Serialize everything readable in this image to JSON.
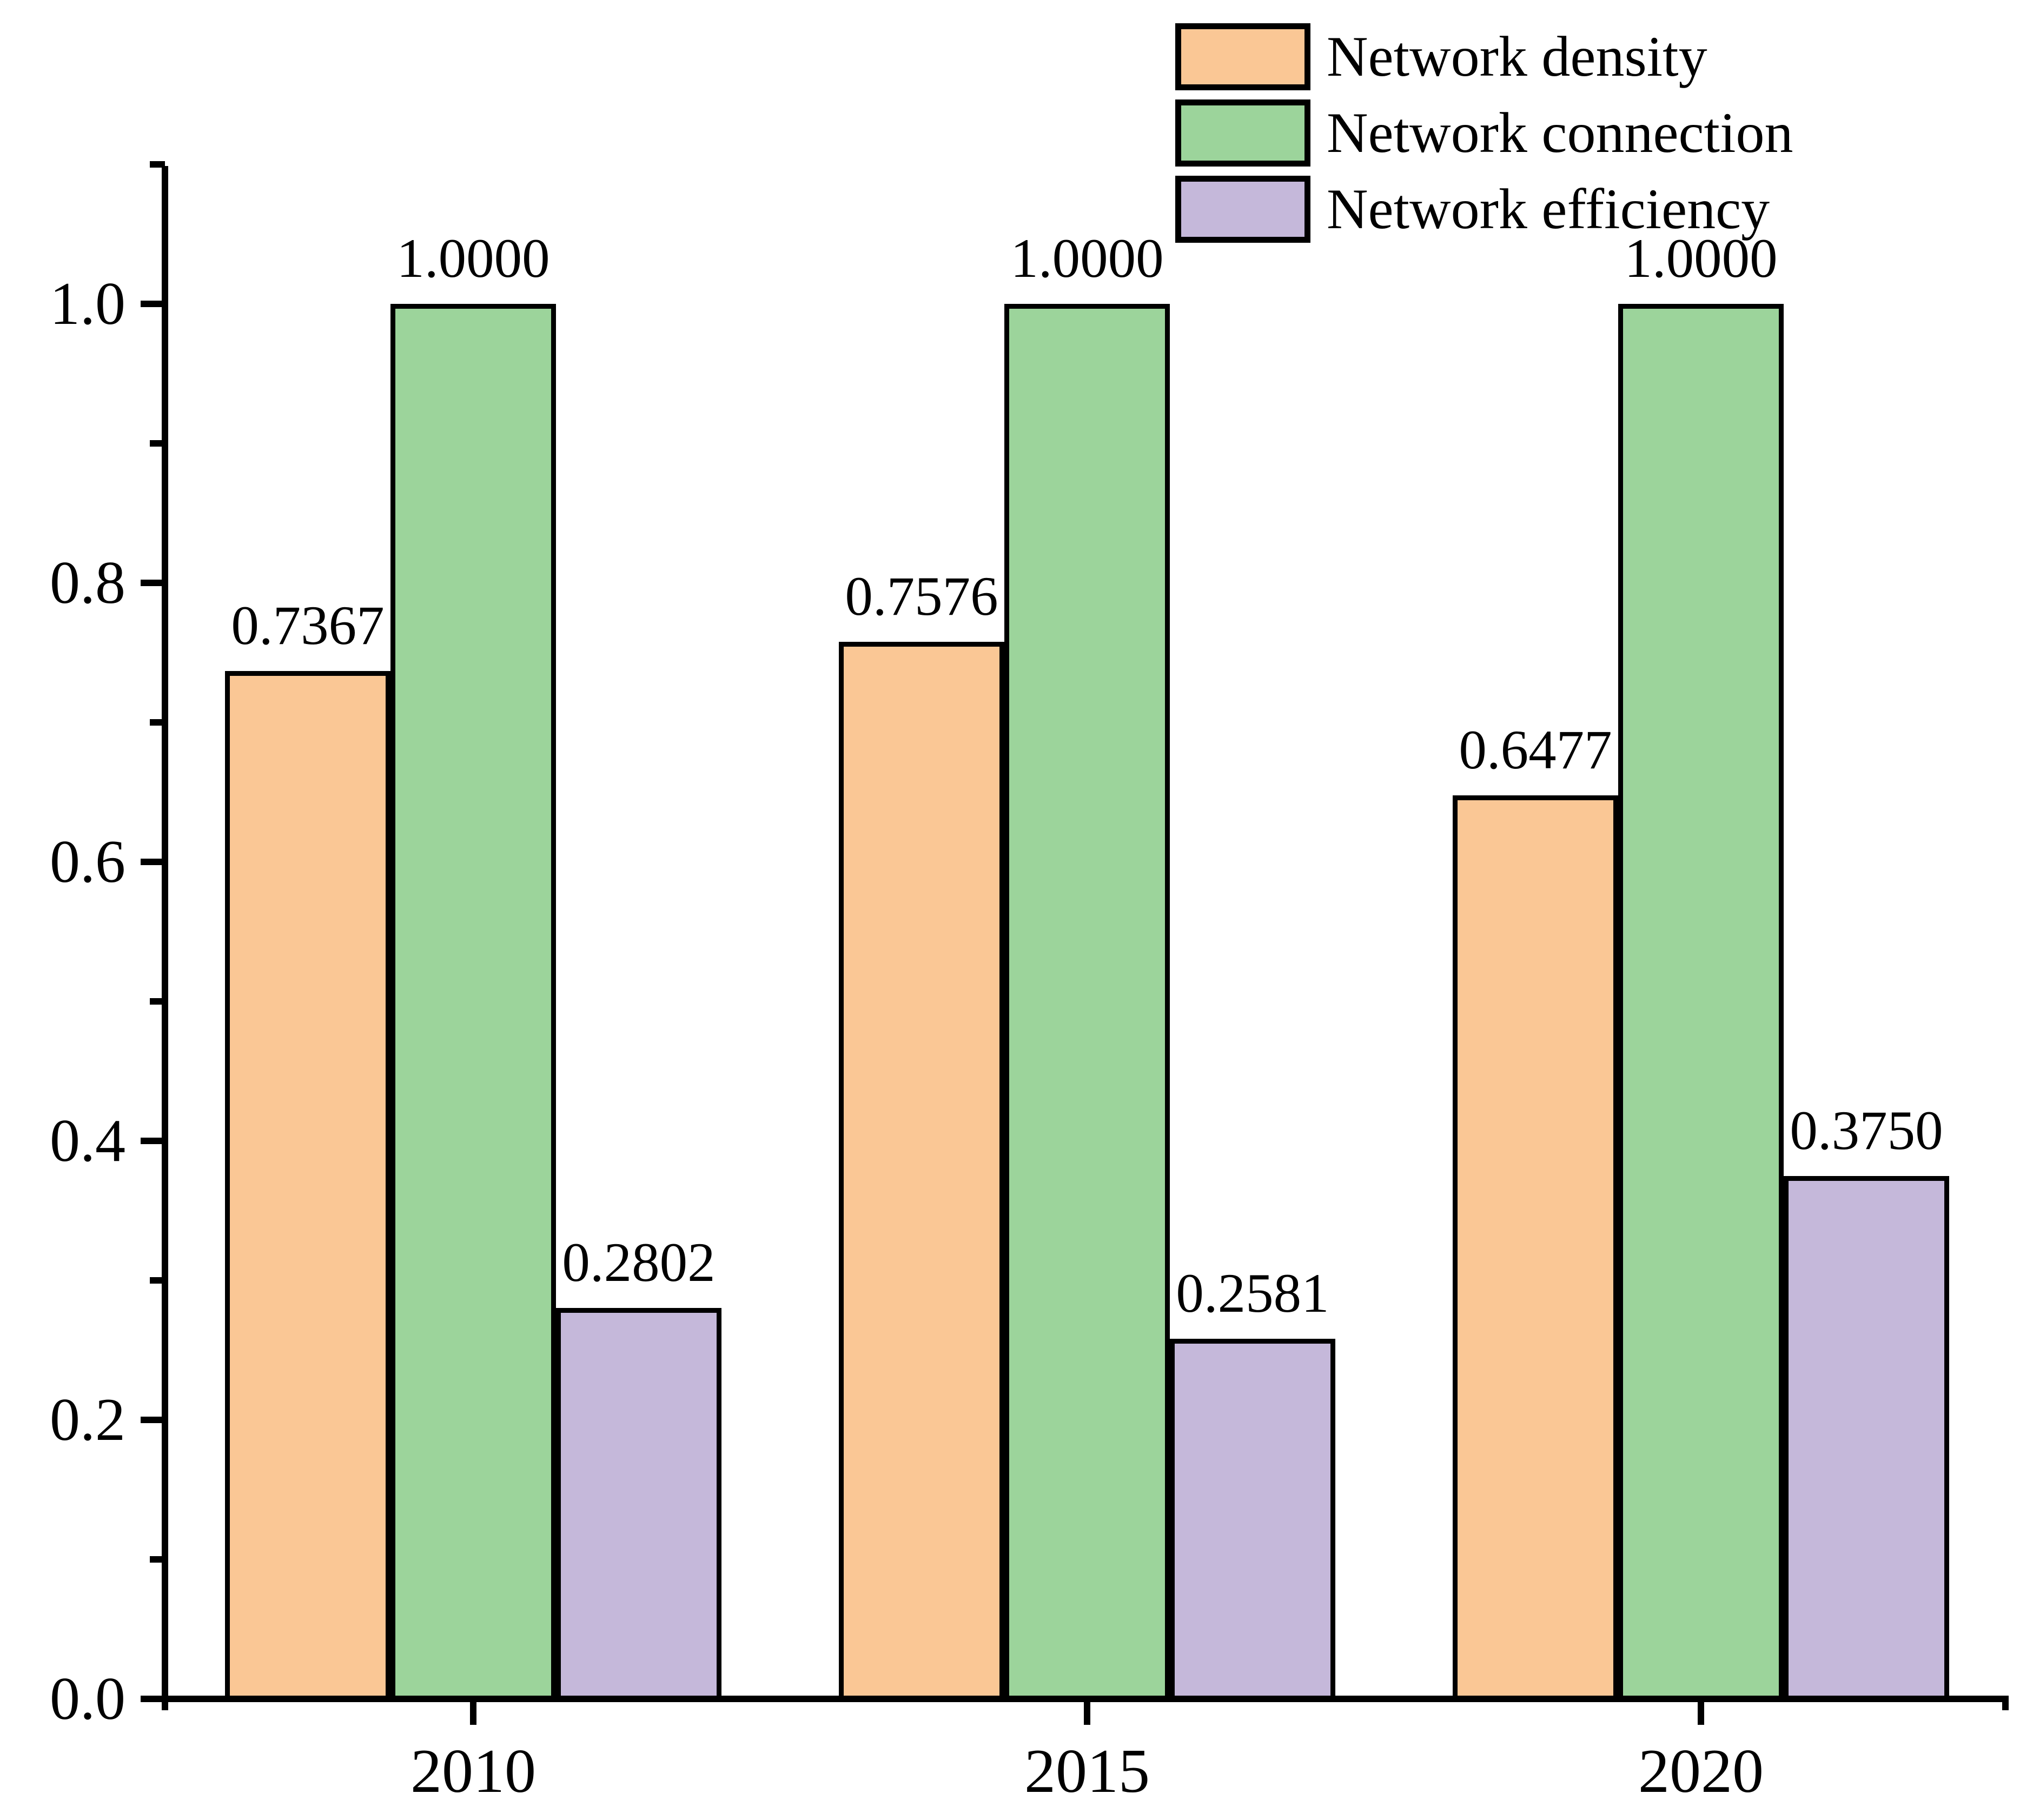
{
  "figure": {
    "background": "#FFFFFF"
  },
  "chart_data": {
    "type": "bar",
    "title": "",
    "xlabel": "",
    "ylabel": "",
    "categories": [
      "2010",
      "2015",
      "2020"
    ],
    "series": [
      {
        "name": "Network density",
        "color": "#FAC795",
        "values": [
          0.7367,
          0.7576,
          0.6477
        ],
        "value_labels": [
          "0.7367",
          "0.7576",
          "0.6477"
        ]
      },
      {
        "name": "Network connection",
        "color": "#9CD49B",
        "values": [
          1.0,
          1.0,
          1.0
        ],
        "value_labels": [
          "1.0000",
          "1.0000",
          "1.0000"
        ]
      },
      {
        "name": "Network efficiency",
        "color": "#C5B8DA",
        "values": [
          0.2802,
          0.2581,
          0.375
        ],
        "value_labels": [
          "0.2802",
          "0.2581",
          "0.3750"
        ]
      }
    ],
    "ylim": [
      0,
      1.1
    ],
    "ytick_major_values": [
      0.0,
      0.2,
      0.4,
      0.6,
      0.8,
      1.0
    ],
    "ytick_major_labels": [
      "0.0",
      "0.2",
      "0.4",
      "0.6",
      "0.8",
      "1.0"
    ],
    "ytick_minor_values": [
      0.1,
      0.3,
      0.5,
      0.7,
      0.9,
      1.1
    ],
    "grid": false,
    "legend_position": "top-right",
    "axis_color": "#000000",
    "text_color": "#000000",
    "bar_border_color": "#000000"
  }
}
